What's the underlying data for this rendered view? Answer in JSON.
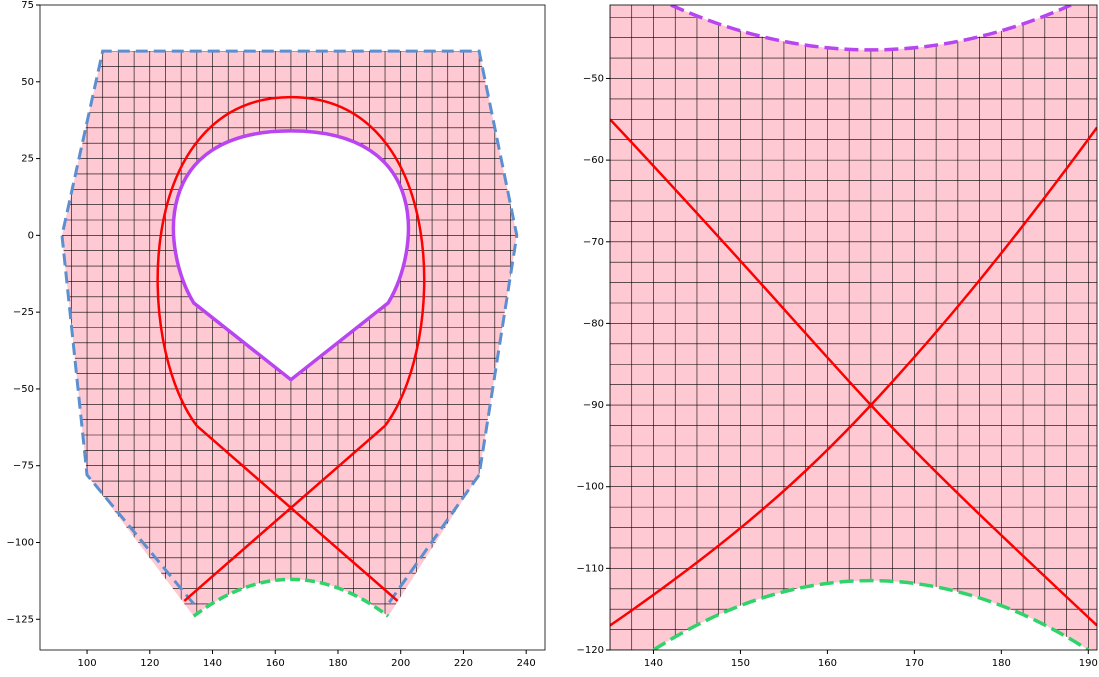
{
  "chart_data": [
    {
      "type": "mesh",
      "xlim": [
        85,
        246
      ],
      "ylim": [
        -135,
        75
      ],
      "xticks": [
        100,
        120,
        140,
        160,
        180,
        200,
        220,
        240
      ],
      "yticks": [
        {
          "value": -125,
          "label": "−125"
        },
        {
          "value": -100,
          "label": "−100"
        },
        {
          "value": -75,
          "label": "−75"
        },
        {
          "value": -50,
          "label": "−50"
        },
        {
          "value": -25,
          "label": "−25"
        },
        0,
        25,
        50,
        75
      ]
    },
    {
      "type": "mesh",
      "xlim": [
        135,
        191
      ],
      "ylim": [
        -120,
        -41
      ],
      "xticks": [
        140,
        150,
        160,
        170,
        180,
        190
      ],
      "yticks": [
        {
          "value": -120,
          "label": "−120"
        },
        {
          "value": -110,
          "label": "−110"
        },
        {
          "value": -100,
          "label": "−100"
        },
        {
          "value": -90,
          "label": "−90"
        },
        {
          "value": -80,
          "label": "−80"
        },
        {
          "value": -70,
          "label": "−70"
        },
        {
          "value": -60,
          "label": "−60"
        },
        {
          "value": -50,
          "label": "−50"
        }
      ]
    }
  ]
}
